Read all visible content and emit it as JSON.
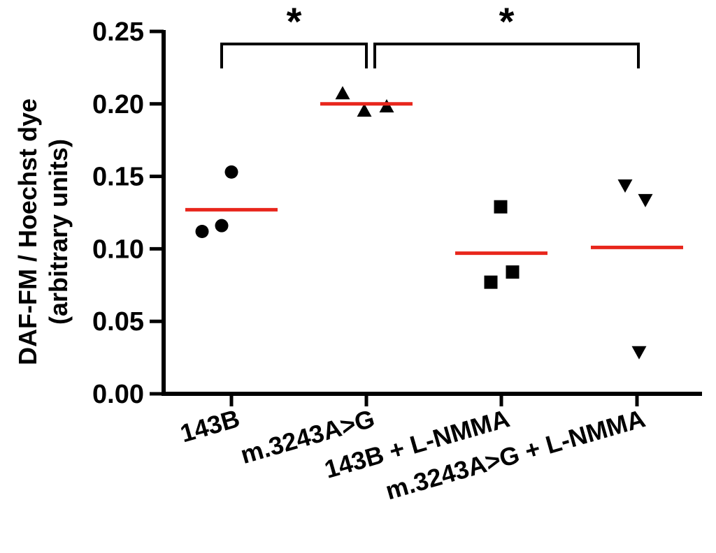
{
  "chart_data": {
    "type": "scatter",
    "ylabel_line1": "DAF-FM / Hoechst dye",
    "ylabel_line2": "(arbitrary units)",
    "xlabel": "",
    "ylim": [
      0,
      0.25
    ],
    "y_ticks": [
      "0.00",
      "0.05",
      "0.10",
      "0.15",
      "0.20",
      "0.25"
    ],
    "y_tick_values": [
      0,
      0.05,
      0.1,
      0.15,
      0.2,
      0.25
    ],
    "categories": [
      "143B",
      "m.3243A>G",
      "143B + L-NMMA",
      "m.3243A>G + L-NMMA"
    ],
    "series": [
      {
        "category": "143B",
        "marker": "circle",
        "points": [
          0.153,
          0.112,
          0.116
        ],
        "mean": 0.127
      },
      {
        "category": "m.3243A>G",
        "marker": "triangle-up",
        "points": [
          0.207,
          0.195,
          0.198
        ],
        "mean": 0.2
      },
      {
        "category": "143B + L-NMMA",
        "marker": "square",
        "points": [
          0.129,
          0.077,
          0.084
        ],
        "mean": 0.097
      },
      {
        "category": "m.3243A>G + L-NMMA",
        "marker": "triangle-down",
        "points": [
          0.144,
          0.134,
          0.029
        ],
        "mean": 0.101
      }
    ],
    "significance": [
      {
        "from": 0,
        "to": 1,
        "label": "*"
      },
      {
        "from": 1,
        "to": 3,
        "label": "*"
      }
    ],
    "colors": {
      "points": "#000000",
      "mean_line": "#e8261c",
      "axis": "#000000"
    },
    "grid": false,
    "legend": "none"
  }
}
